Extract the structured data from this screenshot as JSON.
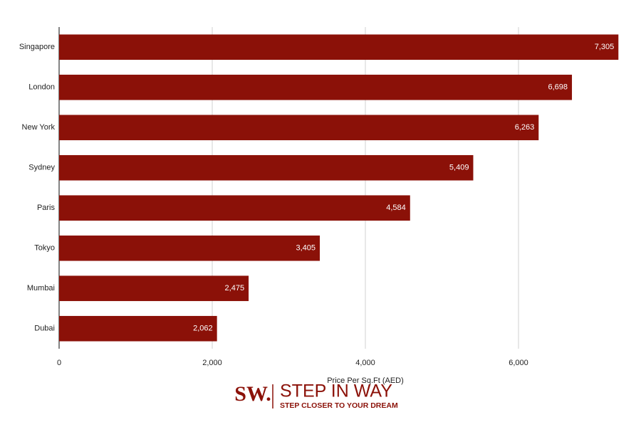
{
  "chart_data": {
    "type": "hbar",
    "x_label": "Price Per Sq.Ft (AED)",
    "categories": [
      "Singapore",
      "London",
      "New York",
      "Sydney",
      "Paris",
      "Tokyo",
      "Mumbai",
      "Dubai"
    ],
    "values": [
      7305,
      6698,
      6263,
      5409,
      4584,
      3405,
      2475,
      2062
    ],
    "value_labels": [
      "7,305",
      "6,698",
      "6,263",
      "5,409",
      "4,584",
      "3,405",
      "2,475",
      "2,062"
    ],
    "color": "#8b1108",
    "xlim": [
      0,
      7400
    ],
    "xticks": [
      0,
      {
        "value": 2000,
        "label": "2,000"
      },
      {
        "value": 4000,
        "label": "4,000"
      },
      {
        "value": 6000,
        "label": "6,000"
      }
    ],
    "grid": true,
    "logo": {
      "mark": "SW.",
      "name": "STEP IN WAY",
      "tagline": "STEP CLOSER TO YOUR DREAM"
    }
  }
}
